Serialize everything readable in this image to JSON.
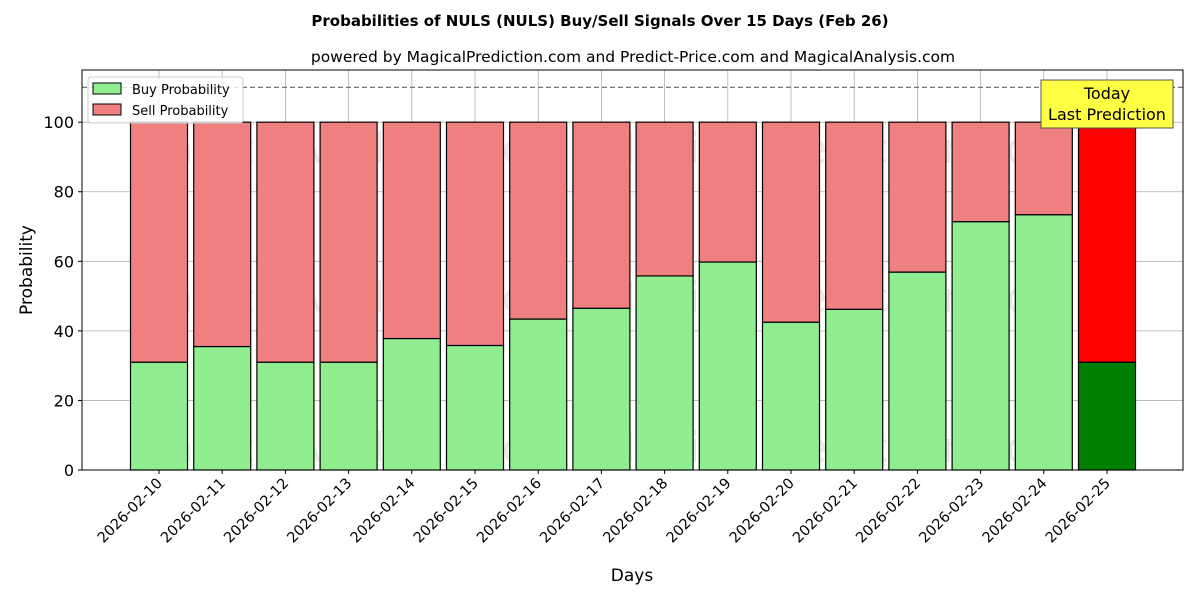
{
  "chart_data": {
    "type": "bar",
    "stacked": true,
    "title": "Probabilities of NULS (NULS) Buy/Sell Signals Over 15 Days (Feb 26)",
    "subtitle": "powered by MagicalPrediction.com and Predict-Price.com and MagicalAnalysis.com",
    "xlabel": "Days",
    "ylabel": "Probability",
    "ylim": [
      0,
      115
    ],
    "yticks": [
      0,
      20,
      40,
      60,
      80,
      100
    ],
    "grid": true,
    "legend_position": "top-left",
    "reference_line": 110,
    "categories": [
      "2026-02-10",
      "2026-02-11",
      "2026-02-12",
      "2026-02-13",
      "2026-02-14",
      "2026-02-15",
      "2026-02-16",
      "2026-02-17",
      "2026-02-18",
      "2026-02-19",
      "2026-02-20",
      "2026-02-21",
      "2026-02-22",
      "2026-02-23",
      "2026-02-24",
      "2026-02-25"
    ],
    "series": [
      {
        "name": "Buy Probability",
        "color": "#90ee90",
        "today_color": "#008000",
        "values": [
          31.0,
          35.5,
          31.0,
          31.0,
          37.8,
          35.8,
          43.4,
          46.5,
          55.8,
          59.8,
          42.5,
          46.2,
          56.9,
          71.4,
          73.4,
          31.0
        ]
      },
      {
        "name": "Sell Probability",
        "color": "#f08080",
        "today_color": "#ff0000",
        "values": [
          69.0,
          64.5,
          69.0,
          69.0,
          62.2,
          64.2,
          56.6,
          53.5,
          44.2,
          40.2,
          57.5,
          53.8,
          43.1,
          28.6,
          26.6,
          69.0
        ]
      }
    ],
    "annotation": {
      "line1": "Today",
      "line2": "Last Prediction",
      "color": "#ffff44"
    },
    "watermarks": [
      "MagicalAnalysis.com",
      "MagicalPrediction.com"
    ]
  }
}
